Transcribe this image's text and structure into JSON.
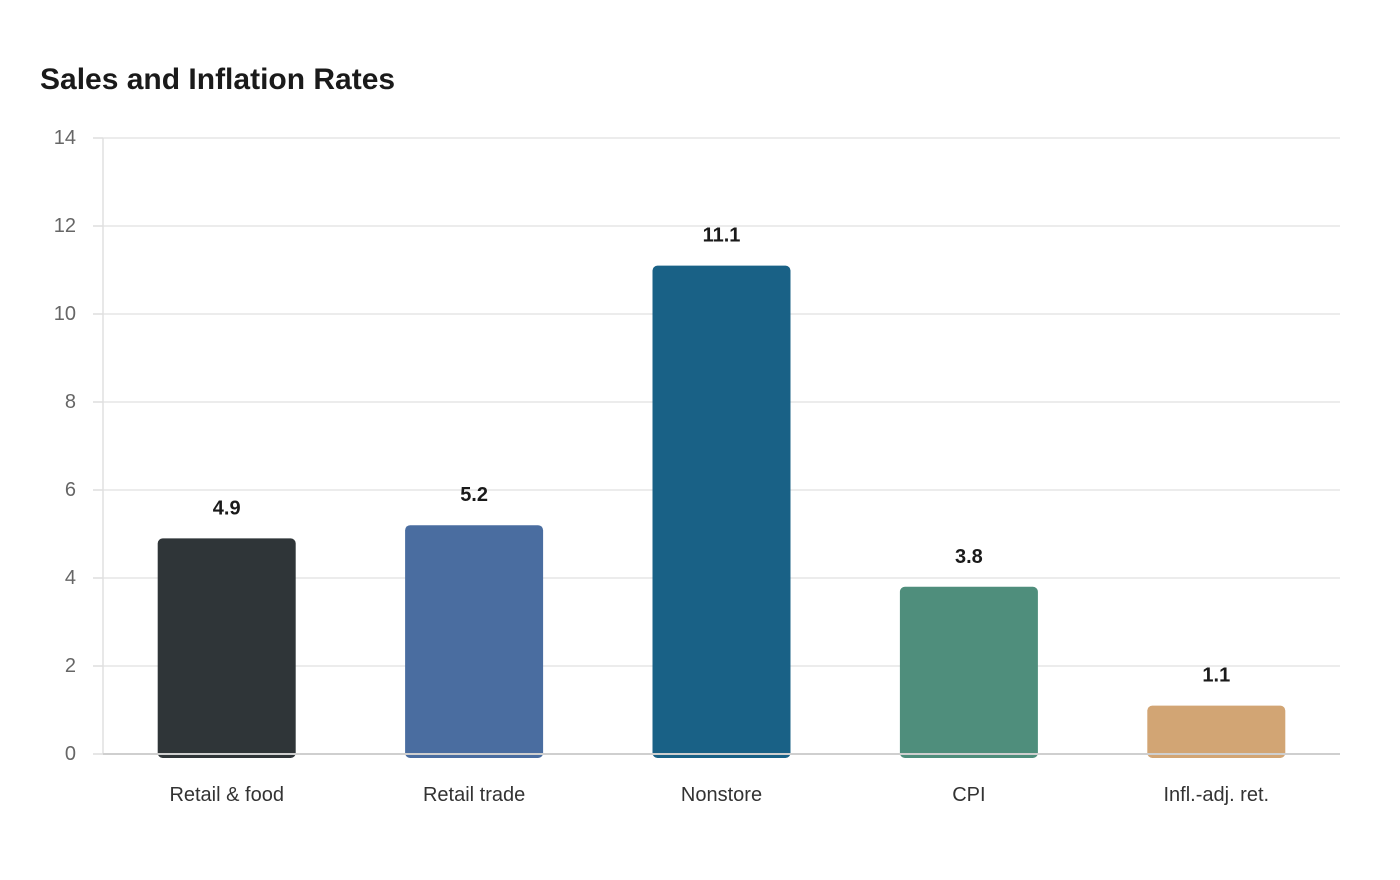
{
  "chart_data": {
    "type": "bar",
    "title": "Sales and Inflation Rates",
    "xlabel": "",
    "ylabel": "",
    "categories": [
      "Retail & food",
      "Retail trade",
      "Nonstore",
      "CPI",
      "Infl.-adj. ret."
    ],
    "values": [
      4.9,
      5.2,
      11.1,
      3.8,
      1.1
    ],
    "data_labels": [
      "4.9",
      "5.2",
      "11.1",
      "3.8",
      "1.1"
    ],
    "colors": [
      "#2f3538",
      "#4a6da0",
      "#196186",
      "#4f8e7c",
      "#d2a574"
    ],
    "ylim": [
      0,
      14
    ],
    "yticks": [
      0,
      2,
      4,
      6,
      8,
      10,
      12,
      14
    ],
    "grid": true,
    "legend": "none"
  }
}
